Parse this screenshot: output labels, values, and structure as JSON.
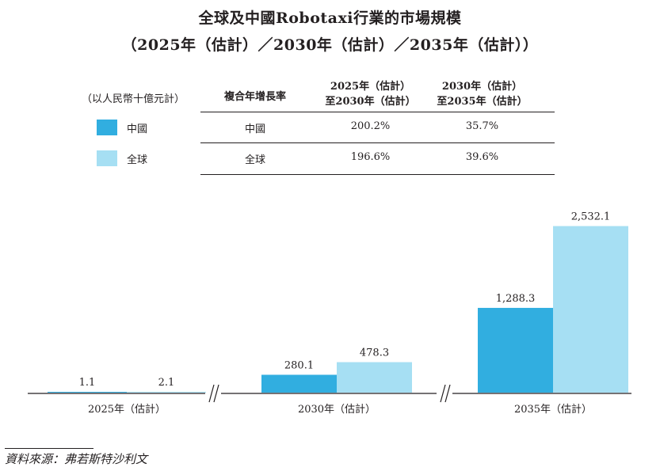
{
  "title_line1": "全球及中國Robotaxi行業的市場規模",
  "title_line2": "（2025年（估計）／2030年（估計）／2035年（估計））",
  "unit": "（以人民幣十億元計）",
  "table": {
    "headers": {
      "cagr": "複合年增長率",
      "p1_line1": "2025年（估計）",
      "p1_line2": "至2030年（估計）",
      "p2_line1": "2030年（估計）",
      "p2_line2": "至2035年（估計）"
    },
    "rows": [
      {
        "legend": "中國",
        "name": "中國",
        "cagr1": "200.2%",
        "cagr2": "35.7%"
      },
      {
        "legend": "全球",
        "name": "全球",
        "cagr1": "196.6%",
        "cagr2": "39.6%"
      }
    ]
  },
  "colors": {
    "china": "#31aee0",
    "global": "#a6dff3"
  },
  "chart_data": {
    "type": "bar",
    "title": "全球及中國Robotaxi行業的市場規模",
    "categories": [
      "2025年（估計）",
      "2030年（估計）",
      "2035年（估計）"
    ],
    "series": [
      {
        "name": "中國",
        "values": [
          1.1,
          280.1,
          1288.3
        ],
        "labels": [
          "1.1",
          "280.1",
          "1,288.3"
        ]
      },
      {
        "name": "全球",
        "values": [
          2.1,
          478.3,
          2532.1
        ],
        "labels": [
          "2.1",
          "478.3",
          "2,532.1"
        ]
      }
    ],
    "ylabel": "人民幣十億元",
    "axis_breaks": true,
    "ylim": [
      0,
      2800
    ]
  },
  "source": "資料來源：弗若斯特沙利文"
}
